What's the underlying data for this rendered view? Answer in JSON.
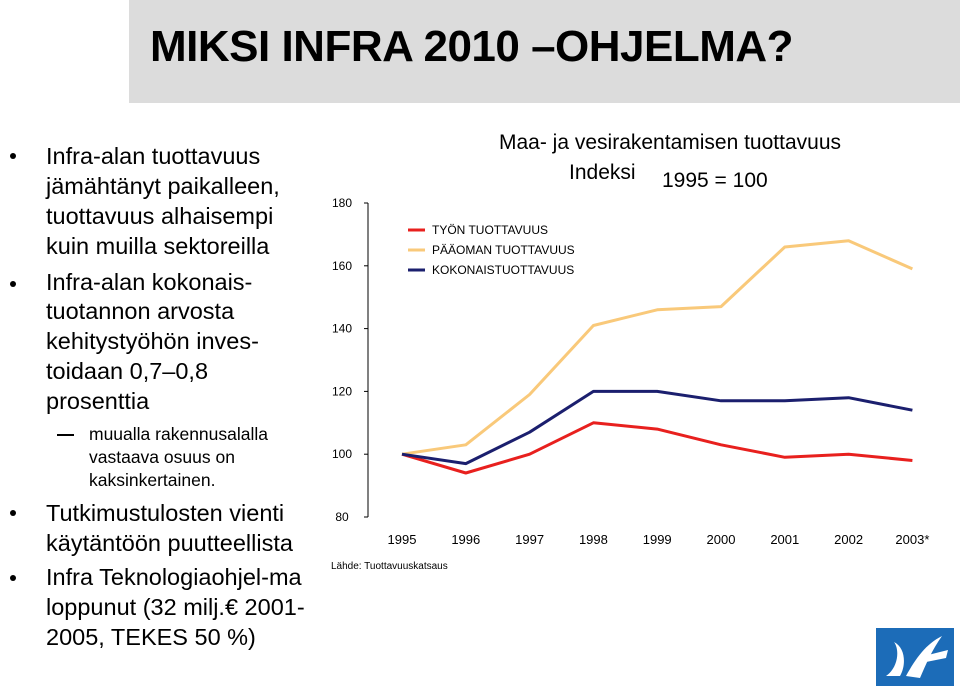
{
  "slide": {
    "title": "MIKSI INFRA 2010 –OHJELMA?",
    "bullets": [
      {
        "lines": [
          "Infra-alan tuottavuus",
          "jämähtänyt paikalleen,",
          "tuottavuus alhaisempi",
          "kuin muilla sektoreilla"
        ]
      },
      {
        "lines": [
          "Infra-alan kokonais-",
          "tuotannon arvosta",
          "kehitystyöhön inves-",
          "toidaan 0,7–0,8",
          "prosenttia"
        ]
      },
      {
        "lines": [
          "Tutkimustulosten vienti",
          "käytäntöön puutteellista"
        ]
      },
      {
        "lines": [
          "Infra Teknologiaohjel-ma",
          "loppunut (32 milj.€ 2001-",
          "2005, TEKES 50 %)"
        ]
      }
    ],
    "subbullet": {
      "lines": [
        "muualla rakennusalalla",
        "vastaava osuus on",
        "kaksinkertainen."
      ]
    }
  },
  "chart_data": {
    "type": "line",
    "title": "Maa- ja vesirakentamisen tuottavuus",
    "subtitle_left": "Indeksi",
    "subtitle_right": "1995 = 100",
    "source": "Lähde: Tuottavuuskatsaus",
    "categories": [
      "1995",
      "1996",
      "1997",
      "1998",
      "1999",
      "2000",
      "2001",
      "2002",
      "2003*"
    ],
    "ylim": [
      80,
      180
    ],
    "yticks": [
      "180",
      "160",
      "140",
      "120",
      "100",
      "80"
    ],
    "grid": false,
    "legend_position": "top-left",
    "series": [
      {
        "name": "TYÖN TUOTTAVUUS",
        "color": "#e8201e",
        "values": [
          100,
          94,
          100,
          110,
          108,
          103,
          99,
          100,
          98
        ]
      },
      {
        "name": "PÄÄOMAN TUOTTAVUUS",
        "color": "#f9c97a",
        "values": [
          100,
          103,
          119,
          141,
          146,
          147,
          166,
          168,
          159
        ]
      },
      {
        "name": "KOKONAISTUOTTAVUUS",
        "color": "#1b1f6e",
        "values": [
          100,
          97,
          107,
          120,
          120,
          117,
          117,
          118,
          114
        ]
      }
    ]
  },
  "colors": {
    "title_bg": "#dcdcdc",
    "logo": "#1c6cb8"
  },
  "icons": {
    "logo": "vtt-logo"
  }
}
